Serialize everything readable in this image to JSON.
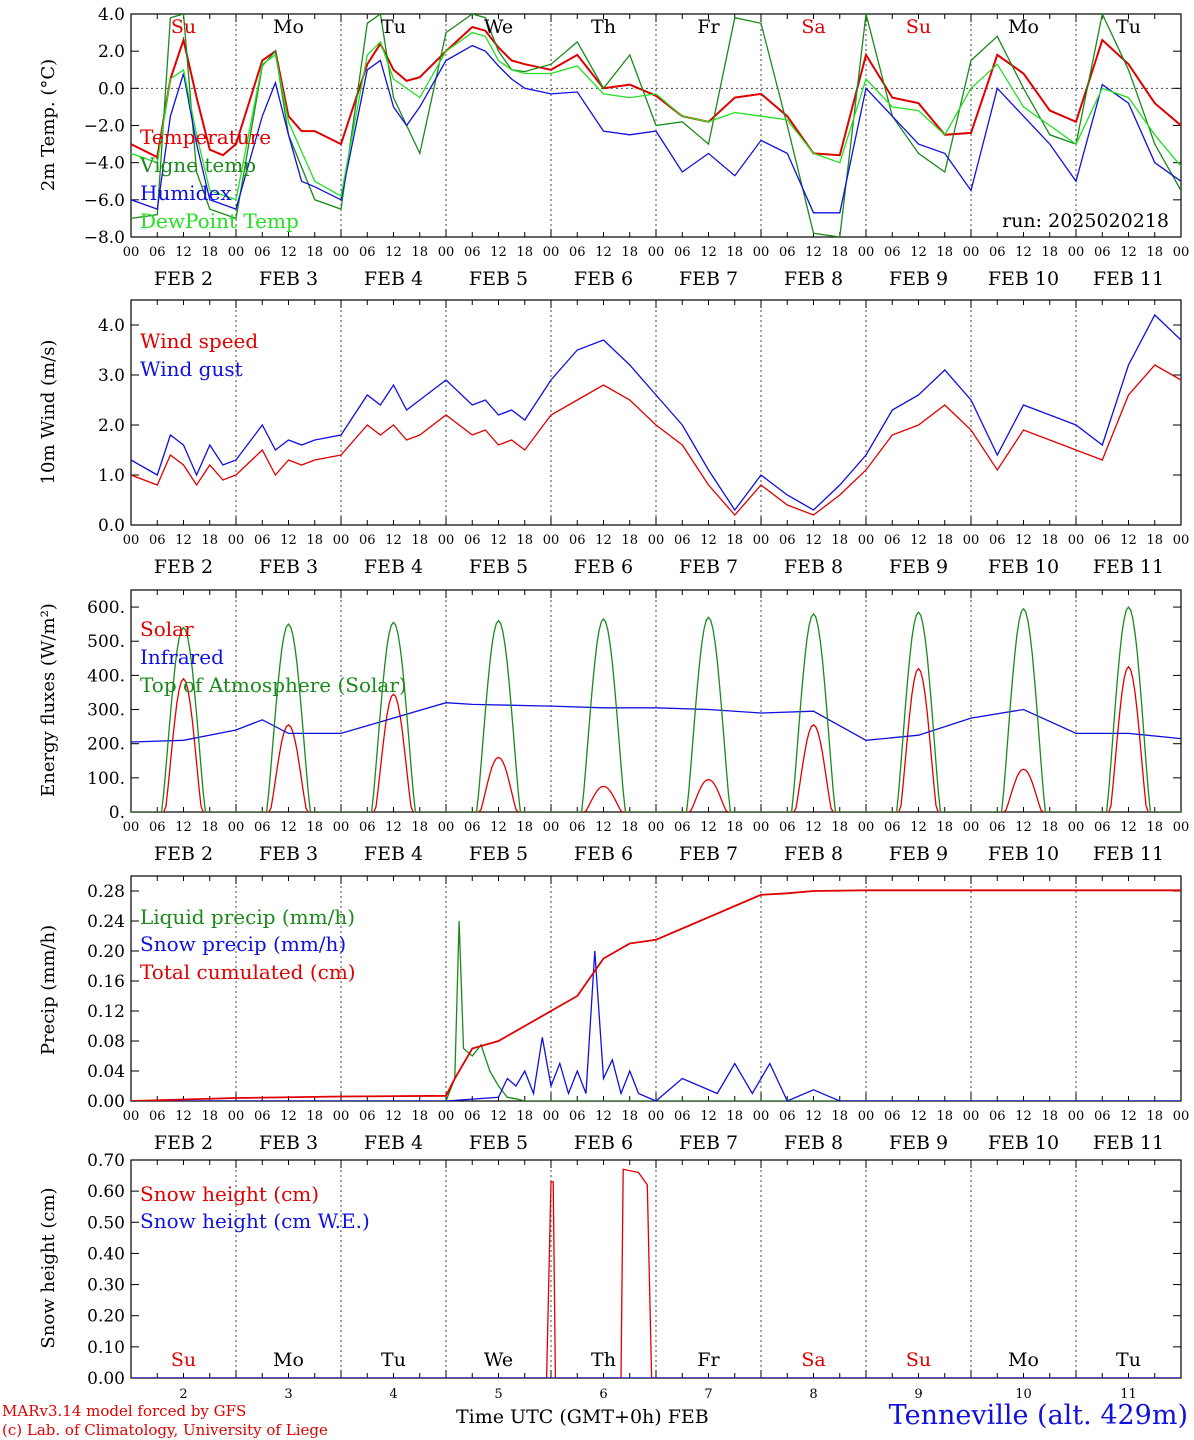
{
  "colors": {
    "red": "#e00000",
    "green": "#1a8a1a",
    "lightgreen": "#22e022",
    "blue": "#1010e0",
    "black": "#000000"
  },
  "footer": {
    "model_line": "MARv3.14 model forced by GFS",
    "credit_line": "(c) Lab. of Climatology, University of Liege",
    "axis_title": "Time UTC (GMT+0h)",
    "month": "FEB",
    "station": "Tenneville (alt. 429m)"
  },
  "hour_ticks": [
    "00",
    "06",
    "12",
    "18"
  ],
  "last_hour_tick": "00",
  "date_labels": [
    "FEB  2",
    "FEB  3",
    "FEB  4",
    "FEB  5",
    "FEB  6",
    "FEB  7",
    "FEB  8",
    "FEB  9",
    "FEB 10",
    "FEB 11"
  ],
  "days": [
    {
      "dow": "Su",
      "num": "2",
      "weekend": true
    },
    {
      "dow": "Mo",
      "num": "3",
      "weekend": false
    },
    {
      "dow": "Tu",
      "num": "4",
      "weekend": false
    },
    {
      "dow": "We",
      "num": "5",
      "weekend": false
    },
    {
      "dow": "Th",
      "num": "6",
      "weekend": false
    },
    {
      "dow": "Fr",
      "num": "7",
      "weekend": false
    },
    {
      "dow": "Sa",
      "num": "8",
      "weekend": true
    },
    {
      "dow": "Su",
      "num": "9",
      "weekend": true
    },
    {
      "dow": "Mo",
      "num": "10",
      "weekend": false
    },
    {
      "dow": "Tu",
      "num": "11",
      "weekend": false
    }
  ],
  "chart_data": [
    {
      "type": "line",
      "ylabel": "2m Temp. (°C)",
      "ylim": [
        -8,
        4
      ],
      "yticks": [
        4,
        2,
        0,
        -2,
        -4,
        -6,
        -8
      ],
      "ytick_labels": [
        "4.0",
        "2.0",
        "0.0",
        "−2.0",
        "−4.0",
        "−6.0",
        "−8.0"
      ],
      "zero_line": true,
      "annotation": "run: 2025020218",
      "x_unit": "hours since FEB 2 00 UTC",
      "series": [
        {
          "name": "Temperature",
          "color": "red",
          "x": [
            0,
            6,
            9,
            12,
            15,
            18,
            21,
            24,
            30,
            33,
            36,
            39,
            42,
            48,
            54,
            57,
            60,
            63,
            66,
            72,
            78,
            81,
            84,
            87,
            90,
            96,
            102,
            108,
            114,
            120,
            126,
            132,
            138,
            144,
            150,
            156,
            162,
            168,
            174,
            180,
            186,
            192,
            198,
            204,
            210,
            216,
            222,
            228,
            234,
            240
          ],
          "y": [
            -3.0,
            -3.7,
            0.5,
            2.6,
            -0.5,
            -3.3,
            -3.6,
            -3.0,
            1.5,
            2.0,
            -1.5,
            -2.3,
            -2.3,
            -3.0,
            1.3,
            2.4,
            1.0,
            0.4,
            0.6,
            2.0,
            3.3,
            3.1,
            2.2,
            1.5,
            1.3,
            1.0,
            1.8,
            0.0,
            0.2,
            -0.4,
            -1.5,
            -1.8,
            -0.5,
            -0.3,
            -1.5,
            -3.5,
            -3.6,
            1.8,
            -0.5,
            -0.8,
            -2.5,
            -2.4,
            1.8,
            0.8,
            -1.2,
            -1.8,
            2.6,
            1.3,
            -0.8,
            -2.0
          ]
        },
        {
          "name": "Vigne temp",
          "color": "green",
          "x": [
            0,
            6,
            9,
            12,
            15,
            18,
            24,
            30,
            33,
            36,
            42,
            48,
            54,
            57,
            60,
            66,
            72,
            78,
            81,
            84,
            87,
            90,
            96,
            102,
            108,
            114,
            120,
            126,
            132,
            138,
            144,
            150,
            156,
            162,
            168,
            174,
            180,
            186,
            192,
            198,
            204,
            210,
            216,
            222,
            228,
            234,
            240
          ],
          "y": [
            -7.0,
            -6.8,
            3.8,
            4.0,
            -4.5,
            -6.5,
            -7.0,
            1.2,
            2.0,
            -2.5,
            -6.0,
            -6.5,
            3.5,
            4.0,
            -0.5,
            -3.5,
            3.0,
            4.0,
            3.8,
            2.0,
            1.0,
            0.9,
            1.3,
            2.5,
            0.0,
            1.8,
            -2.0,
            -1.8,
            -3.0,
            3.8,
            3.5,
            -2.0,
            -7.8,
            -8.0,
            4.0,
            -1.5,
            -3.5,
            -4.5,
            1.5,
            2.8,
            0.0,
            -2.5,
            -3.0,
            4.0,
            1.0,
            -3.0,
            -5.5
          ]
        },
        {
          "name": "Humidex",
          "color": "blue",
          "x": [
            0,
            6,
            9,
            12,
            15,
            18,
            24,
            30,
            33,
            36,
            39,
            42,
            48,
            54,
            57,
            60,
            63,
            66,
            72,
            78,
            81,
            84,
            87,
            90,
            96,
            102,
            108,
            114,
            120,
            126,
            132,
            138,
            144,
            150,
            156,
            162,
            168,
            174,
            180,
            186,
            192,
            198,
            204,
            210,
            216,
            222,
            228,
            234,
            240
          ],
          "y": [
            -6.0,
            -6.5,
            -1.5,
            0.8,
            -3.0,
            -6.0,
            -6.5,
            -1.5,
            0.3,
            -2.5,
            -5.0,
            -5.3,
            -6.0,
            1.0,
            1.5,
            -1.0,
            -2.0,
            -1.0,
            1.5,
            2.3,
            2.0,
            1.2,
            0.5,
            0.0,
            -0.3,
            -0.2,
            -2.3,
            -2.5,
            -2.3,
            -4.5,
            -3.5,
            -4.7,
            -2.8,
            -3.5,
            -6.7,
            -6.7,
            0.0,
            -1.5,
            -3.0,
            -3.5,
            -5.5,
            0.0,
            -1.5,
            -3.0,
            -5.0,
            0.2,
            -0.8,
            -4.0,
            -5.0
          ]
        },
        {
          "name": "DewPoint Temp",
          "color": "lightgreen",
          "x": [
            0,
            6,
            9,
            12,
            15,
            18,
            24,
            30,
            33,
            36,
            42,
            48,
            54,
            57,
            60,
            66,
            72,
            78,
            81,
            84,
            87,
            90,
            96,
            102,
            108,
            114,
            120,
            126,
            132,
            138,
            144,
            150,
            156,
            162,
            168,
            174,
            180,
            186,
            192,
            198,
            204,
            210,
            216,
            222,
            228,
            234,
            240
          ],
          "y": [
            -3.5,
            -4.0,
            0.5,
            1.0,
            -2.5,
            -5.5,
            -6.0,
            1.3,
            1.8,
            -1.8,
            -5.0,
            -5.8,
            1.8,
            2.5,
            0.5,
            -0.5,
            2.0,
            3.0,
            2.8,
            1.5,
            1.0,
            0.8,
            0.8,
            1.2,
            -0.3,
            -0.5,
            -0.3,
            -1.5,
            -1.8,
            -1.3,
            -1.5,
            -1.7,
            -3.5,
            -4.0,
            0.5,
            -1.0,
            -1.2,
            -2.5,
            0.0,
            1.3,
            -1.0,
            -2.0,
            -3.0,
            0.0,
            -0.5,
            -2.5,
            -4.2
          ]
        }
      ]
    },
    {
      "type": "line",
      "ylabel": "10m Wind (m/s)",
      "ylim": [
        0,
        4.5
      ],
      "yticks": [
        0,
        1,
        2,
        3,
        4
      ],
      "ytick_labels": [
        "0.0",
        "1.0",
        "2.0",
        "3.0",
        "4.0"
      ],
      "x_unit": "hours since FEB 2 00 UTC",
      "series": [
        {
          "name": "Wind speed",
          "color": "red",
          "x": [
            0,
            6,
            9,
            12,
            15,
            18,
            21,
            24,
            30,
            33,
            36,
            39,
            42,
            48,
            54,
            57,
            60,
            63,
            66,
            72,
            78,
            81,
            84,
            87,
            90,
            96,
            102,
            108,
            114,
            120,
            126,
            132,
            138,
            144,
            150,
            156,
            162,
            168,
            174,
            180,
            186,
            192,
            198,
            204,
            210,
            216,
            222,
            228,
            234,
            240
          ],
          "y": [
            1.0,
            0.8,
            1.4,
            1.2,
            0.8,
            1.2,
            0.9,
            1.0,
            1.5,
            1.0,
            1.3,
            1.2,
            1.3,
            1.4,
            2.0,
            1.8,
            2.0,
            1.7,
            1.8,
            2.2,
            1.8,
            1.9,
            1.6,
            1.7,
            1.5,
            2.2,
            2.5,
            2.8,
            2.5,
            2.0,
            1.6,
            0.8,
            0.2,
            0.8,
            0.4,
            0.2,
            0.6,
            1.1,
            1.8,
            2.0,
            2.4,
            1.9,
            1.1,
            1.9,
            1.7,
            1.5,
            1.3,
            2.6,
            3.2,
            2.9
          ]
        },
        {
          "name": "Wind gust",
          "color": "blue",
          "x": [
            0,
            6,
            9,
            12,
            15,
            18,
            21,
            24,
            30,
            33,
            36,
            39,
            42,
            48,
            54,
            57,
            60,
            63,
            66,
            72,
            78,
            81,
            84,
            87,
            90,
            96,
            102,
            108,
            114,
            120,
            126,
            132,
            138,
            144,
            150,
            156,
            162,
            168,
            174,
            180,
            186,
            192,
            198,
            204,
            210,
            216,
            222,
            228,
            234,
            240
          ],
          "y": [
            1.3,
            1.0,
            1.8,
            1.6,
            1.0,
            1.6,
            1.2,
            1.3,
            2.0,
            1.5,
            1.7,
            1.6,
            1.7,
            1.8,
            2.6,
            2.4,
            2.8,
            2.3,
            2.5,
            2.9,
            2.4,
            2.5,
            2.2,
            2.3,
            2.1,
            2.9,
            3.5,
            3.7,
            3.2,
            2.6,
            2.0,
            1.1,
            0.3,
            1.0,
            0.6,
            0.3,
            0.8,
            1.4,
            2.3,
            2.6,
            3.1,
            2.5,
            1.4,
            2.4,
            2.2,
            2.0,
            1.6,
            3.2,
            4.2,
            3.7
          ]
        }
      ]
    },
    {
      "type": "line",
      "ylabel": "Energy fluxes (W/m²)",
      "ylim": [
        0,
        650
      ],
      "yticks": [
        0,
        100,
        200,
        300,
        400,
        500,
        600
      ],
      "ytick_labels": [
        "0.",
        "100.",
        "200.",
        "300.",
        "400.",
        "500.",
        "600."
      ],
      "x_unit": "hours since FEB 2 00 UTC",
      "peaks": {
        "Solar": [
          390,
          255,
          345,
          160,
          75,
          95,
          255,
          420,
          125,
          425
        ],
        "Top of Atmosphere (Solar)": [
          540,
          550,
          555,
          560,
          565,
          570,
          580,
          585,
          595,
          600
        ]
      },
      "series": [
        {
          "name": "Solar",
          "color": "red"
        },
        {
          "name": "Infrared",
          "color": "blue",
          "x": [
            0,
            12,
            24,
            30,
            36,
            42,
            48,
            72,
            78,
            96,
            108,
            120,
            132,
            144,
            156,
            168,
            180,
            192,
            204,
            216,
            228,
            240
          ],
          "y": [
            205,
            210,
            240,
            270,
            230,
            230,
            230,
            320,
            315,
            310,
            305,
            305,
            300,
            290,
            295,
            210,
            225,
            275,
            300,
            230,
            230,
            215
          ]
        },
        {
          "name": "Top of Atmosphere (Solar)",
          "color": "green"
        }
      ]
    },
    {
      "type": "line",
      "ylabel": "Precip (mm/h)",
      "ylim": [
        0,
        0.3
      ],
      "yticks": [
        0,
        0.04,
        0.08,
        0.12,
        0.16,
        0.2,
        0.24,
        0.28
      ],
      "ytick_labels": [
        "0.00",
        "0.04",
        "0.08",
        "0.12",
        "0.16",
        "0.20",
        "0.24",
        "0.28"
      ],
      "x_unit": "hours since FEB 2 00 UTC",
      "series": [
        {
          "name": "Liquid precip (mm/h)",
          "color": "green",
          "x": [
            0,
            72,
            74,
            75,
            76,
            78,
            80,
            82,
            84,
            86,
            88,
            90,
            96,
            120,
            240
          ],
          "y": [
            0,
            0,
            0.03,
            0.24,
            0.07,
            0.06,
            0.075,
            0.04,
            0.02,
            0.005,
            0.003,
            0.0,
            0.0,
            0,
            0
          ]
        },
        {
          "name": "Snow precip (mm/h)",
          "color": "blue",
          "x": [
            0,
            72,
            84,
            86,
            88,
            90,
            92,
            94,
            96,
            98,
            100,
            102,
            104,
            106,
            108,
            110,
            112,
            114,
            116,
            120,
            126,
            130,
            134,
            138,
            142,
            146,
            150,
            156,
            162,
            168,
            240
          ],
          "y": [
            0,
            0,
            0.005,
            0.03,
            0.02,
            0.04,
            0.01,
            0.085,
            0.02,
            0.05,
            0.01,
            0.04,
            0.01,
            0.2,
            0.03,
            0.055,
            0.01,
            0.04,
            0.01,
            0.0,
            0.03,
            0.02,
            0.01,
            0.05,
            0.01,
            0.05,
            0.0,
            0.015,
            0.0,
            0.0,
            0
          ]
        },
        {
          "name": "Total cumulated (cm)",
          "color": "red",
          "x": [
            0,
            24,
            48,
            72,
            74,
            78,
            84,
            90,
            96,
            102,
            108,
            114,
            120,
            126,
            132,
            138,
            144,
            150,
            156,
            168,
            192,
            240
          ],
          "y": [
            0.0,
            0.004,
            0.006,
            0.007,
            0.03,
            0.07,
            0.08,
            0.1,
            0.12,
            0.14,
            0.19,
            0.21,
            0.215,
            0.23,
            0.245,
            0.26,
            0.275,
            0.277,
            0.28,
            0.281,
            0.281,
            0.281
          ]
        }
      ]
    },
    {
      "type": "line",
      "ylabel": "Snow height (cm)",
      "ylim": [
        0,
        0.7
      ],
      "yticks": [
        0,
        0.1,
        0.2,
        0.3,
        0.4,
        0.5,
        0.6,
        0.7
      ],
      "ytick_labels": [
        "0.00",
        "0.10",
        "0.20",
        "0.30",
        "0.40",
        "0.50",
        "0.60",
        "0.70"
      ],
      "x_unit": "hours since FEB 2 00 UTC",
      "series": [
        {
          "name": "Snow height (cm)",
          "color": "red",
          "x": [
            0,
            95,
            96,
            96.5,
            97,
            112,
            112.5,
            116,
            118,
            119,
            240
          ],
          "y": [
            0,
            0,
            0.63,
            0.63,
            0,
            0,
            0.67,
            0.66,
            0.62,
            0,
            0
          ]
        },
        {
          "name": "Snow height (cm W.E.)",
          "color": "blue",
          "x": [
            0,
            240
          ],
          "y": [
            0,
            0
          ]
        }
      ]
    }
  ]
}
